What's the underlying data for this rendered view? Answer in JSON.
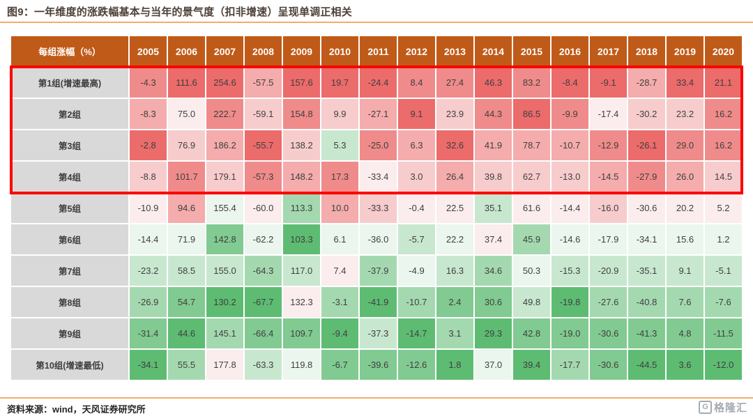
{
  "title": "图9：一年维度的涨跌幅基本与当年的景气度（扣非增速）呈现单调正相关",
  "footer": {
    "source": "资料来源：wind，天风证券研究所",
    "logo_mark": "G",
    "logo_text": "格隆汇"
  },
  "colors": {
    "accent_line": "#f3ac67",
    "header_bg": "#c05a18",
    "header_text": "#ffffff",
    "label_bg": "#d9d9d9",
    "cell_text": "#3f3f3f",
    "highlight_border": "#fe0000",
    "scale_high": "#ec6b6b",
    "scale_mid": "#fdfdfd",
    "scale_low": "#5dbc72"
  },
  "chart_data": {
    "type": "heatmap",
    "title": "图9：一年维度的涨跌幅基本与当年的景气度（扣非增速）呈现单调正相关",
    "corner_label": "每组涨幅（%）",
    "columns": [
      "2005",
      "2006",
      "2007",
      "2008",
      "2009",
      "2010",
      "2011",
      "2012",
      "2013",
      "2014",
      "2015",
      "2016",
      "2017",
      "2018",
      "2019",
      "2020"
    ],
    "rows": [
      "第1组(增速最高)",
      "第2组",
      "第3组",
      "第4组",
      "第5组",
      "第6组",
      "第7组",
      "第8组",
      "第9组",
      "第10组(增速最低)"
    ],
    "values": [
      [
        -4.3,
        111.6,
        254.6,
        -57.5,
        157.6,
        19.7,
        -24.4,
        8.4,
        27.4,
        46.3,
        83.2,
        -8.4,
        -9.1,
        -28.7,
        33.4,
        21.1
      ],
      [
        -8.3,
        75.0,
        222.7,
        -59.1,
        154.8,
        9.9,
        -27.1,
        9.1,
        23.9,
        44.3,
        86.5,
        -9.9,
        -17.4,
        -30.2,
        23.2,
        16.2
      ],
      [
        -2.8,
        76.9,
        186.2,
        -55.7,
        138.2,
        5.3,
        -25.0,
        6.3,
        32.6,
        41.9,
        78.7,
        -10.7,
        -12.9,
        -26.1,
        29.0,
        16.2
      ],
      [
        -8.8,
        101.7,
        179.1,
        -57.3,
        148.2,
        17.3,
        -33.4,
        3.0,
        26.4,
        39.8,
        62.7,
        -13.0,
        -14.5,
        -27.9,
        26.0,
        14.5
      ],
      [
        -10.9,
        94.6,
        155.4,
        -60.0,
        113.3,
        10.0,
        -33.3,
        -0.4,
        22.5,
        35.1,
        61.6,
        -14.4,
        -16.0,
        -30.6,
        20.2,
        5.2
      ],
      [
        -14.4,
        71.9,
        142.8,
        -62.2,
        103.3,
        6.1,
        -36.0,
        -5.7,
        22.2,
        37.4,
        45.9,
        -14.6,
        -17.9,
        -34.1,
        15.6,
        1.2
      ],
      [
        -23.2,
        58.5,
        155.0,
        -64.3,
        117.0,
        7.4,
        -37.9,
        -4.9,
        16.3,
        34.6,
        50.3,
        -15.3,
        -20.9,
        -35.1,
        9.1,
        -5.1
      ],
      [
        -26.9,
        54.7,
        130.2,
        -67.7,
        132.3,
        -3.1,
        -41.9,
        -10.7,
        2.4,
        30.6,
        49.8,
        -19.8,
        -27.6,
        -40.8,
        7.6,
        -7.6
      ],
      [
        -31.4,
        44.6,
        145.1,
        -66.4,
        109.7,
        -9.4,
        -37.3,
        -14.7,
        3.1,
        29.3,
        42.8,
        -19.0,
        -30.6,
        -41.3,
        4.8,
        -11.5
      ],
      [
        -34.1,
        55.5,
        177.8,
        -63.3,
        119.8,
        -6.7,
        -39.6,
        -12.6,
        1.8,
        37.0,
        39.4,
        -17.7,
        -30.6,
        -44.5,
        3.6,
        -12.0
      ]
    ],
    "value_format": "one decimal, percent",
    "color_scale": {
      "mapping": "rank within each year column; highest value = red, middle = white, lowest = green",
      "high_color": "#ec6b6b",
      "mid_color": "#fdfdfd",
      "low_color": "#5dbc72"
    },
    "highlight": {
      "description": "red rectangle outlining group rows 1-4",
      "row_start": 1,
      "row_end": 4,
      "border_color": "#fe0000"
    }
  }
}
